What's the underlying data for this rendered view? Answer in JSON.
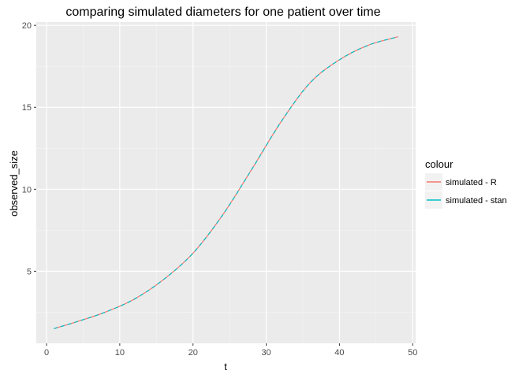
{
  "chart_data": {
    "type": "line",
    "title": "comparing simulated diameters for one patient over time",
    "xlabel": "t",
    "ylabel": "observed_size",
    "xlim": [
      -1.4,
      50.4
    ],
    "ylim": [
      0.6,
      20.2
    ],
    "x_ticks": [
      0,
      10,
      20,
      30,
      40,
      50
    ],
    "y_ticks": [
      5,
      10,
      15,
      20
    ],
    "grid": true,
    "legend": {
      "title": "colour",
      "placement": "right"
    },
    "x": [
      1,
      4,
      8,
      12,
      16,
      20,
      24,
      28,
      32,
      36,
      40,
      44,
      48
    ],
    "series": [
      {
        "name": "simulated - R",
        "color": "#F8766D",
        "style": "solid",
        "values": [
          1.5,
          1.9,
          2.5,
          3.3,
          4.5,
          6.1,
          8.4,
          11.2,
          14.1,
          16.5,
          17.9,
          18.8,
          19.3
        ]
      },
      {
        "name": "simulated - stan",
        "color": "#00BFC4",
        "style": "dashed",
        "values": [
          1.5,
          1.9,
          2.5,
          3.3,
          4.5,
          6.1,
          8.4,
          11.2,
          14.1,
          16.5,
          17.9,
          18.8,
          19.3
        ]
      }
    ]
  }
}
